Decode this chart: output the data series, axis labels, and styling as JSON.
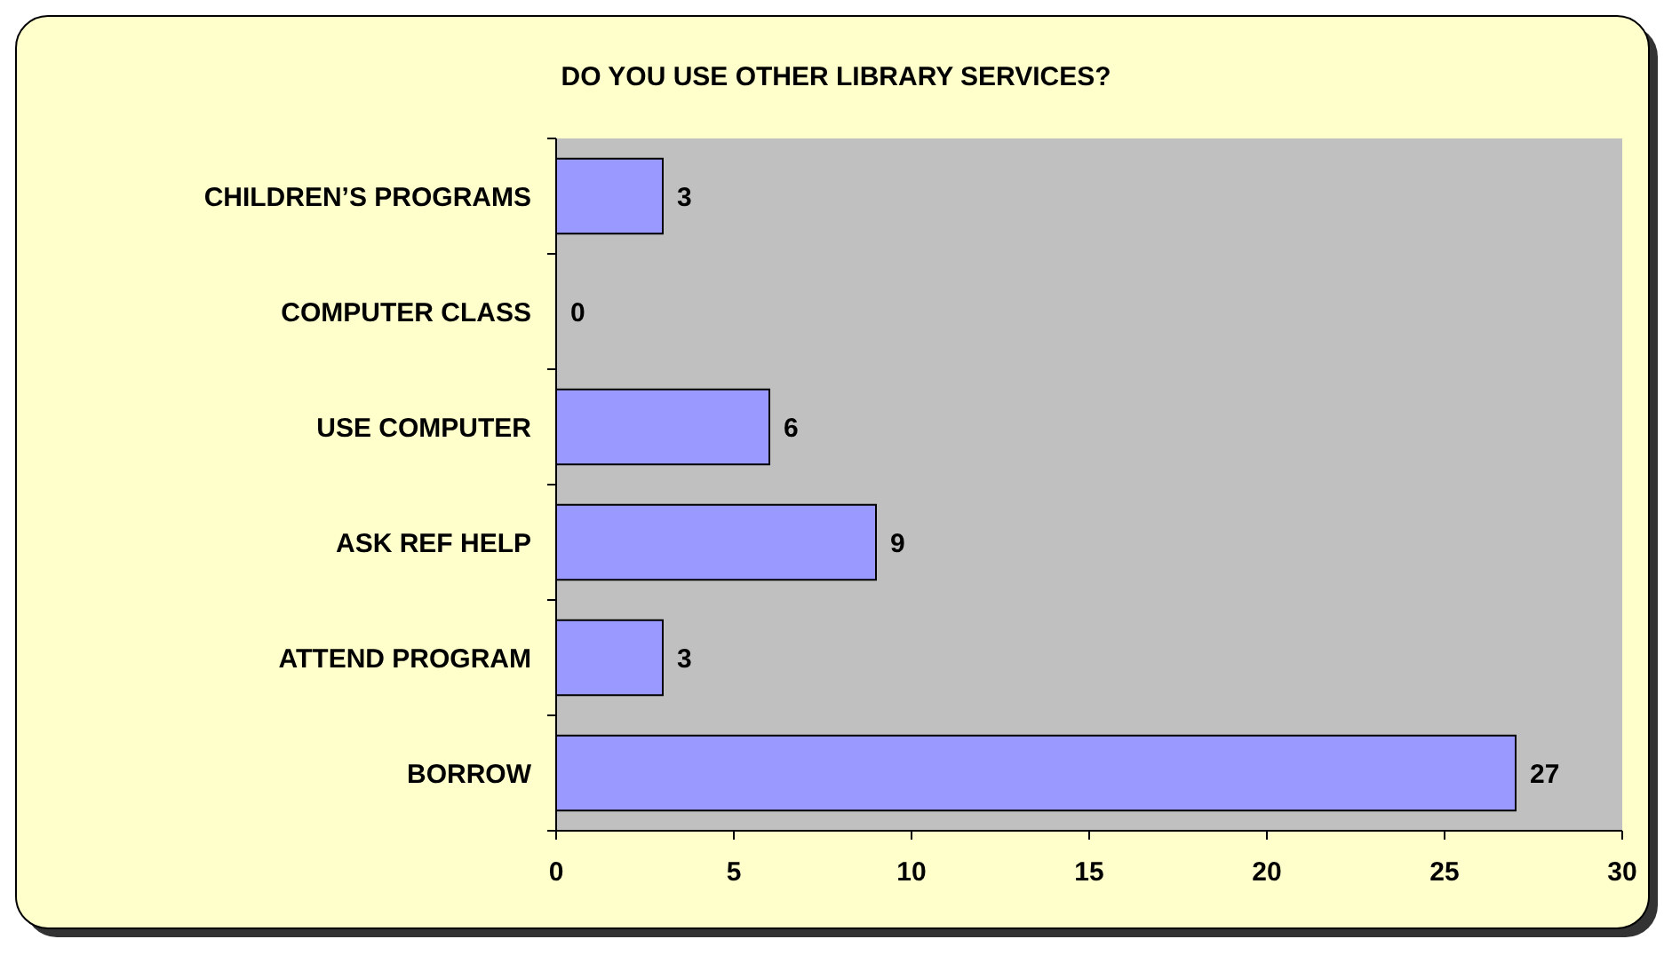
{
  "chart_data": {
    "type": "bar",
    "orientation": "horizontal",
    "title": "DO YOU USE OTHER LIBRARY SERVICES?",
    "categories": [
      "CHILDREN’S PROGRAMS",
      "COMPUTER CLASS",
      "USE COMPUTER",
      "ASK REF HELP",
      "ATTEND PROGRAM",
      "BORROW"
    ],
    "values": [
      3,
      0,
      6,
      9,
      3,
      27
    ],
    "color": "#9999ff",
    "xlim": [
      0,
      30
    ],
    "xticks": [
      0,
      5,
      10,
      15,
      20,
      25,
      30
    ],
    "data_labels": true,
    "grid": false
  }
}
